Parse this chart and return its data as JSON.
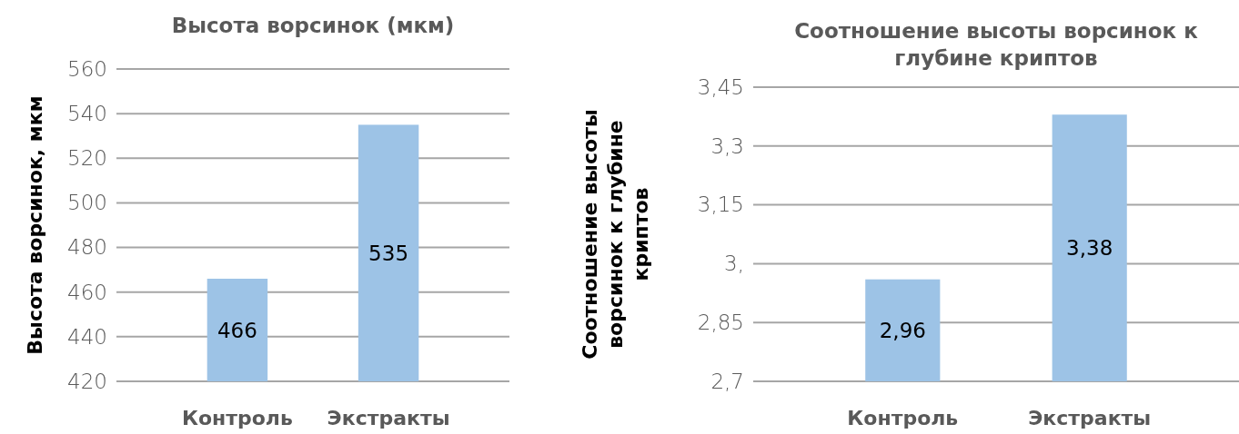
{
  "chart_data": [
    {
      "type": "bar",
      "title": "Высота ворсинок (мкм)",
      "ylabel": "Высота ворсинок, мкм",
      "categories": [
        "Контроль",
        "Экстракты"
      ],
      "values": [
        466,
        535
      ],
      "color": "#9dc3e6",
      "ylim": [
        420,
        560
      ],
      "yticks": [
        420,
        440,
        460,
        480,
        500,
        520,
        540,
        560
      ],
      "grid": "y",
      "data_labels": true
    },
    {
      "type": "bar",
      "title": "Соотношение высоты ворсинок к глубине криптов",
      "ylabel": "Соотношение высоты ворсинок к глубине криптов",
      "categories": [
        "Контроль",
        "Экстракты"
      ],
      "values": [
        2.96,
        3.38
      ],
      "value_labels": [
        "2,96",
        "3,38"
      ],
      "color": "#9dc3e6",
      "ylim": [
        2.7,
        3.45
      ],
      "yticks": [
        {
          "value": 2.7,
          "label": "2,7"
        },
        {
          "value": 2.85,
          "label": "2,85"
        },
        {
          "value": 3,
          "label": "3,"
        },
        {
          "value": 3.15,
          "label": "3,15"
        },
        {
          "value": 3.3,
          "label": "3,3"
        },
        {
          "value": 3.45,
          "label": "3,45"
        }
      ],
      "grid": "y"
    }
  ]
}
